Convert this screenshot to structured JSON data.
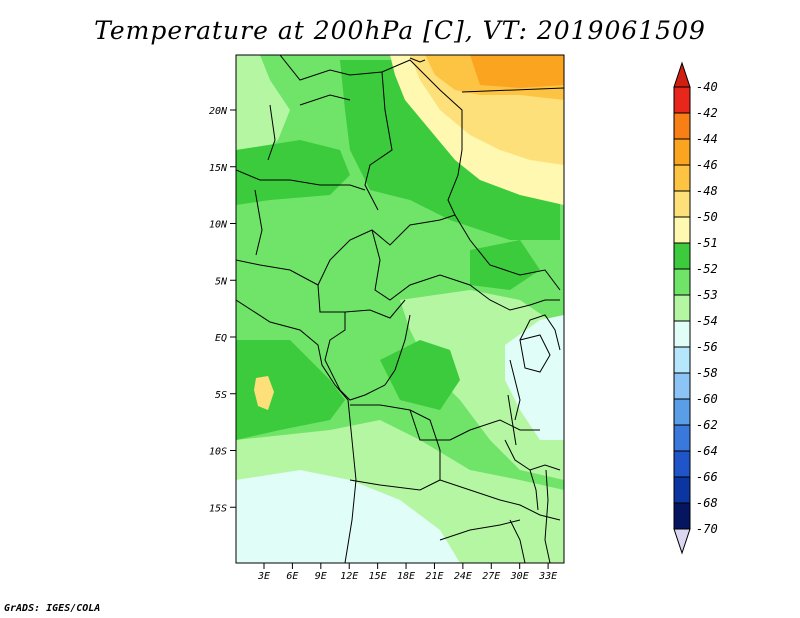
{
  "title": "Temperature at 200hPa [C], VT: 2019061509",
  "credit": "GrADS: IGES/COLA",
  "map": {
    "variable": "Temperature",
    "level": "200hPa",
    "unit": "C",
    "valid_time": "2019061509",
    "lat_labels": [
      "20N",
      "15N",
      "10N",
      "5N",
      "EQ",
      "5S",
      "10S",
      "15S"
    ],
    "lon_labels": [
      "3E",
      "6E",
      "9E",
      "12E",
      "15E",
      "18E",
      "21E",
      "24E",
      "27E",
      "30E",
      "33E"
    ]
  },
  "colorbar": {
    "levels": [
      {
        "label": "-40",
        "color": "#e8261b"
      },
      {
        "label": "-42",
        "color": "#f25418"
      },
      {
        "label": "-44",
        "color": "#f77f15"
      },
      {
        "label": "-46",
        "color": "#fba420"
      },
      {
        "label": "-48",
        "color": "#fdc443"
      },
      {
        "label": "-50",
        "color": "#fde07a"
      },
      {
        "label": "-51",
        "color": "#fff8b0"
      },
      {
        "label": "-52",
        "color": "#3bcb3c"
      },
      {
        "label": "-53",
        "color": "#6fe468"
      },
      {
        "label": "-54",
        "color": "#b5f6a3"
      },
      {
        "label": "-56",
        "color": "#e0fef7"
      },
      {
        "label": "-58",
        "color": "#b6e6fb"
      },
      {
        "label": "-60",
        "color": "#8cc4f5"
      },
      {
        "label": "-62",
        "color": "#5b9ee8"
      },
      {
        "label": "-64",
        "color": "#3a78dc"
      },
      {
        "label": "-66",
        "color": "#1f55c9"
      },
      {
        "label": "-68",
        "color": "#0b35a0"
      },
      {
        "label": "-70",
        "color": "#06155f"
      }
    ],
    "top_triangle_color": "#d01f10",
    "bottom_triangle_color": "#dcd6f0"
  }
}
